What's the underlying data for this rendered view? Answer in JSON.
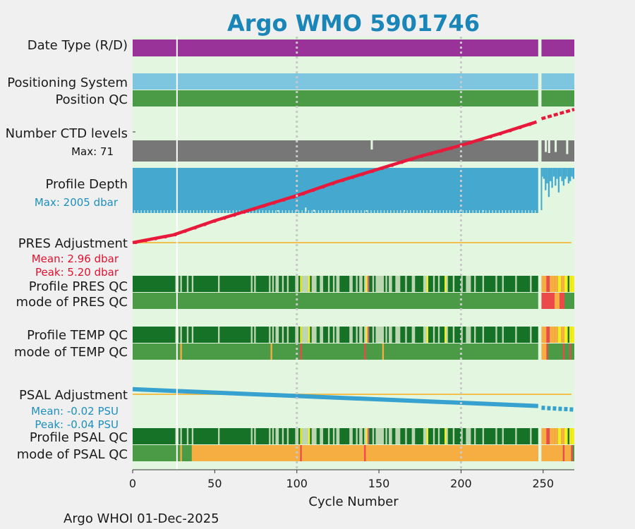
{
  "colors": {
    "background": "#f0f0f0",
    "plot_bg": "#e3f7e0",
    "title": "#1a86b8",
    "date_type": "#993399",
    "positioning": "#7ec6e0",
    "qc_good": "#4a9a46",
    "ctd": "#777777",
    "depth": "#45a9cf",
    "red_curve": "#e8193a",
    "pres_adj_line": "#f2c04a",
    "qc_dark": "#157226",
    "qc_light": "#bcd6b2",
    "qc_yellow": "#f5ee1e",
    "qc_orange": "#f6ad42",
    "qc_red": "#ec4a4a",
    "qc_pink": "#d6627b",
    "psal_line": "#37a1cf",
    "red_text": "#e0112f",
    "blue_text": "#1e8fbd"
  },
  "chart_data": {
    "type": "table",
    "title": "Argo WMO 5901746",
    "xlabel": "Cycle Number",
    "xlim": [
      0,
      269
    ],
    "xticks": [
      0,
      50,
      100,
      150,
      200,
      250
    ],
    "gap_cycles": [
      247,
      248
    ],
    "vertical_marks": [
      27
    ],
    "grid_x": [
      100,
      200
    ],
    "rows": [
      {
        "label": "Date Type (R/D)"
      },
      {
        "label": "Positioning System"
      },
      {
        "label": "Position QC"
      },
      {
        "label": "Number CTD levels",
        "sublabel": "Max: 71"
      },
      {
        "label": "Profile Depth",
        "sublabel": "Max: 2005 dbar"
      },
      {
        "label": "PRES Adjustment",
        "sublabels": [
          "Mean: 2.96 dbar",
          "Peak: 5.20 dbar"
        ]
      },
      {
        "label": "Profile PRES QC"
      },
      {
        "label": "mode of PRES QC"
      },
      {
        "label": "Profile TEMP QC"
      },
      {
        "label": "mode of TEMP QC"
      },
      {
        "label": "PSAL Adjustment",
        "sublabels": [
          "Mean: -0.02 PSU",
          "Peak: -0.04 PSU"
        ]
      },
      {
        "label": "Profile PSAL QC"
      },
      {
        "label": "mode of PSAL QC"
      }
    ],
    "time_curve": {
      "description": "red progression curve (cycle vs relative date)",
      "points": [
        [
          0,
          0.0
        ],
        [
          25,
          0.05
        ],
        [
          50,
          0.14
        ],
        [
          75,
          0.22
        ],
        [
          100,
          0.3
        ],
        [
          125,
          0.39
        ],
        [
          150,
          0.47
        ],
        [
          175,
          0.55
        ],
        [
          200,
          0.62
        ],
        [
          225,
          0.7
        ],
        [
          246,
          0.77
        ],
        [
          249,
          0.79
        ],
        [
          269,
          0.85
        ]
      ]
    },
    "ctd_dips": [
      145
    ],
    "depth_spikes": [
      [
        105,
        0.09
      ],
      [
        110,
        0.04
      ],
      [
        88,
        0.03
      ],
      [
        121,
        0.03
      ],
      [
        142,
        0.03
      ],
      [
        165,
        0.03
      ],
      [
        181,
        0.03
      ],
      [
        213,
        0.03
      ]
    ],
    "depth_after_gap": [
      0.9,
      0.85,
      0.6,
      0.75,
      0.45,
      0.8,
      0.65,
      0.9,
      0.7,
      0.85,
      0.55,
      0.9,
      0.8,
      0.7,
      0.85,
      0.9,
      0.75,
      0.8,
      0.9,
      0.85,
      0.9
    ],
    "psal_adjustment": {
      "start": 0.96,
      "end": 0.79
    },
    "pres_qc_light": [
      [
        26,
        28
      ],
      [
        29,
        30
      ],
      [
        33,
        34
      ],
      [
        36,
        37
      ],
      [
        52,
        53
      ],
      [
        72,
        73
      ],
      [
        74,
        75
      ],
      [
        83,
        84
      ],
      [
        85,
        86
      ],
      [
        87,
        89
      ],
      [
        91,
        92
      ],
      [
        94,
        95
      ],
      [
        99,
        101
      ],
      [
        103,
        107
      ],
      [
        109,
        112
      ],
      [
        114,
        116
      ],
      [
        119,
        120
      ],
      [
        122,
        123
      ],
      [
        124,
        126
      ],
      [
        132,
        134
      ],
      [
        136,
        137
      ],
      [
        138,
        140
      ],
      [
        141,
        144
      ],
      [
        146,
        147
      ],
      [
        148,
        153
      ],
      [
        154,
        155
      ],
      [
        156,
        158
      ],
      [
        160,
        163
      ],
      [
        166,
        167
      ],
      [
        170,
        172
      ],
      [
        177,
        180
      ],
      [
        183,
        184
      ],
      [
        186,
        187
      ],
      [
        190,
        192
      ],
      [
        195,
        196
      ],
      [
        200,
        201
      ],
      [
        203,
        206
      ],
      [
        208,
        209
      ],
      [
        213,
        214
      ],
      [
        221,
        222
      ],
      [
        225,
        226
      ],
      [
        233,
        234
      ],
      [
        242,
        243
      ]
    ],
    "pres_qc_yellow": [
      [
        102,
        103
      ],
      [
        107,
        108
      ],
      [
        142,
        143
      ],
      [
        179,
        180
      ],
      [
        190,
        191
      ]
    ],
    "pres_qc_pink": [
      [
        143,
        144
      ]
    ],
    "pres_mode_after_gap": "red/orange",
    "temp_mode_orange": [
      [
        29,
        30
      ],
      [
        84,
        85
      ],
      [
        152,
        153
      ]
    ],
    "temp_mode_red": [
      [
        102,
        103
      ],
      [
        141,
        142
      ]
    ],
    "psal_mode_orange_from": 36,
    "psal_mode_red": [
      [
        102,
        103
      ],
      [
        141,
        142
      ],
      [
        262,
        263
      ],
      [
        267,
        268
      ]
    ],
    "psal_mode_orange_strip": [
      [
        29,
        30
      ]
    ],
    "footer": "Argo WHOI 01-Dec-2025"
  }
}
